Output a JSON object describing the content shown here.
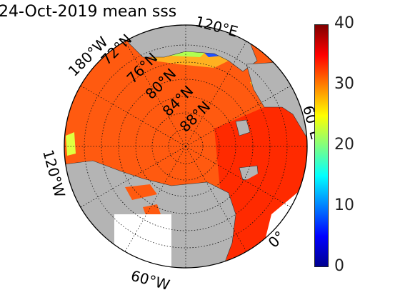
{
  "title": "24-Oct-2019 mean sss",
  "colorbar": {
    "ticks": [
      "40",
      "30",
      "20",
      "10",
      "0"
    ],
    "min": 0,
    "max": 40,
    "colors": [
      "#00008f",
      "#0000ff",
      "#0080ff",
      "#00ffff",
      "#80ff80",
      "#ffff00",
      "#ff8000",
      "#ff0000",
      "#800000"
    ]
  },
  "map": {
    "projection": "north polar stereographic",
    "land_color": "#b4b4b4",
    "ocean_color_main": "#ff5a10",
    "ocean_color_atlantic": "#ff2a00",
    "latitude_labels": [
      "72°N",
      "76°N",
      "80°N",
      "84°N",
      "88°N"
    ],
    "longitude_labels": {
      "lon_180w": "180°W",
      "lon_120e": "120°E",
      "lon_60e": "60°E",
      "lon_120w": "120°W",
      "lon_60w": "60°W",
      "lon_0": "0°"
    }
  }
}
